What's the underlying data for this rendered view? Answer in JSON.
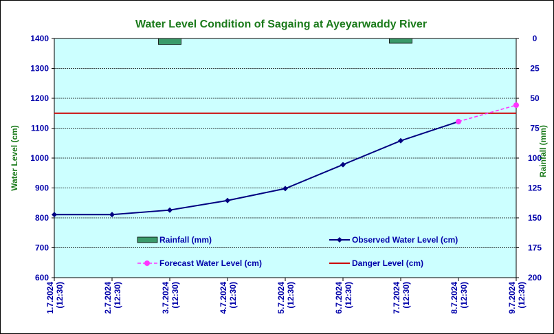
{
  "chart_data": {
    "type": "line",
    "title": "Water Level Condition of Sagaing at Ayeyarwaddy River",
    "ylabel": "Water Level (cm)",
    "y2label": "Rainfall (mm)",
    "categories": [
      "1.7.2024\n(12:30)",
      "2.7.2024\n(12:30)",
      "3.7.2024\n(12:30)",
      "4.7.2024\n(12:30)",
      "5.7.2024\n(12:30)",
      "6.7.2024\n(12:30)",
      "7.7.2024\n(12:30)",
      "8.7.2024\n(12:30)",
      "9.7.2024\n(12:30)"
    ],
    "ylim": [
      600,
      1400
    ],
    "y_ticks": [
      600,
      700,
      800,
      900,
      1000,
      1100,
      1200,
      1300,
      1400
    ],
    "y2lim": [
      0,
      200
    ],
    "y2_ticks": [
      0,
      25,
      50,
      75,
      100,
      125,
      150,
      175,
      200
    ],
    "y2_inverted": true,
    "grid": true,
    "series": [
      {
        "name": "Rainfall (mm)",
        "kind": "bar",
        "axis": "right",
        "color": "#3a9a6a",
        "values": [
          null,
          null,
          5,
          null,
          null,
          null,
          4,
          null,
          null
        ]
      },
      {
        "name": "Observed Water Level (cm)",
        "kind": "line",
        "marker": "diamond",
        "color": "#000080",
        "values": [
          811,
          811,
          826,
          858,
          898,
          978,
          1058,
          1122,
          null
        ]
      },
      {
        "name": "Forecast Water Level (cm)",
        "kind": "line",
        "style": "dashed",
        "marker": "circle",
        "color": "#ff33ff",
        "values": [
          null,
          null,
          null,
          null,
          null,
          null,
          null,
          1122,
          1177
        ]
      },
      {
        "name": "Danger Level (cm)",
        "kind": "hline",
        "color": "#cc0000",
        "value": 1150
      }
    ],
    "colors": {
      "plot_background": "#ccffff",
      "gridline": "#000000",
      "title": "#1a7a1a",
      "tick_text": "#0000aa"
    }
  }
}
